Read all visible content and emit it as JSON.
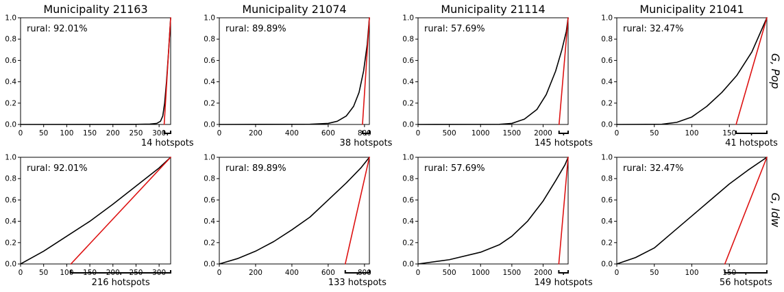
{
  "figure": {
    "row_labels": [
      "G, Pop",
      "G, Idw"
    ],
    "colors": {
      "curve": "#000000",
      "line": "#dd1111",
      "bracket": "#000000"
    }
  },
  "chart_data": [
    {
      "type": "line",
      "row": 0,
      "col": 0,
      "title": "Municipality 21163",
      "annotation": "rural: 92.01%",
      "xlim": [
        0,
        325
      ],
      "ylim": [
        0,
        1
      ],
      "xticks": [
        0,
        50,
        100,
        150,
        200,
        250,
        300
      ],
      "yticks": [
        0.0,
        0.2,
        0.4,
        0.6,
        0.8,
        1.0
      ],
      "series": [
        {
          "values": [
            [
              0,
              0
            ],
            [
              250,
              0.001
            ],
            [
              280,
              0.004
            ],
            [
              295,
              0.01
            ],
            [
              303,
              0.03
            ],
            [
              308,
              0.08
            ],
            [
              312,
              0.2
            ],
            [
              316,
              0.4
            ],
            [
              320,
              0.65
            ],
            [
              325,
              1.0
            ]
          ]
        },
        {
          "values": [
            [
              311,
              0
            ],
            [
              325,
              1.0
            ]
          ]
        }
      ],
      "bracket": [
        311,
        325
      ],
      "hotspots_label": "14 hotspots"
    },
    {
      "type": "line",
      "row": 0,
      "col": 1,
      "title": "Municipality 21074",
      "annotation": "rural: 89.89%",
      "xlim": [
        0,
        827
      ],
      "ylim": [
        0,
        1
      ],
      "xticks": [
        0,
        200,
        400,
        600,
        800
      ],
      "yticks": [
        0.0,
        0.2,
        0.4,
        0.6,
        0.8,
        1.0
      ],
      "series": [
        {
          "values": [
            [
              0,
              0
            ],
            [
              500,
              0.002
            ],
            [
              600,
              0.01
            ],
            [
              650,
              0.03
            ],
            [
              700,
              0.08
            ],
            [
              740,
              0.17
            ],
            [
              770,
              0.3
            ],
            [
              795,
              0.5
            ],
            [
              815,
              0.75
            ],
            [
              827,
              1.0
            ]
          ]
        },
        {
          "values": [
            [
              789,
              0
            ],
            [
              827,
              1.0
            ]
          ]
        }
      ],
      "bracket": [
        789,
        827
      ],
      "hotspots_label": "38 hotspots"
    },
    {
      "type": "line",
      "row": 0,
      "col": 2,
      "title": "Municipality 21114",
      "annotation": "rural: 57.69%",
      "xlim": [
        0,
        2400
      ],
      "ylim": [
        0,
        1
      ],
      "xticks": [
        0,
        500,
        1000,
        1500,
        2000
      ],
      "yticks": [
        0.0,
        0.2,
        0.4,
        0.6,
        0.8,
        1.0
      ],
      "series": [
        {
          "values": [
            [
              0,
              0
            ],
            [
              1300,
              0.001
            ],
            [
              1500,
              0.01
            ],
            [
              1700,
              0.05
            ],
            [
              1900,
              0.14
            ],
            [
              2050,
              0.28
            ],
            [
              2200,
              0.5
            ],
            [
              2300,
              0.7
            ],
            [
              2370,
              0.87
            ],
            [
              2400,
              1.0
            ]
          ]
        },
        {
          "values": [
            [
              2255,
              0
            ],
            [
              2400,
              1.0
            ]
          ]
        }
      ],
      "bracket": [
        2255,
        2400
      ],
      "hotspots_label": "145 hotspots"
    },
    {
      "type": "line",
      "row": 0,
      "col": 3,
      "title": "Municipality 21041",
      "annotation": "rural: 32.47%",
      "xlim": [
        0,
        200
      ],
      "ylim": [
        0,
        1
      ],
      "xticks": [
        0,
        50,
        100,
        150
      ],
      "yticks": [
        0.0,
        0.2,
        0.4,
        0.6,
        0.8,
        1.0
      ],
      "series": [
        {
          "values": [
            [
              0,
              0
            ],
            [
              60,
              0.002
            ],
            [
              80,
              0.02
            ],
            [
              100,
              0.07
            ],
            [
              120,
              0.17
            ],
            [
              140,
              0.3
            ],
            [
              160,
              0.46
            ],
            [
              180,
              0.68
            ],
            [
              200,
              1.0
            ]
          ]
        },
        {
          "values": [
            [
              159,
              0
            ],
            [
              200,
              1.0
            ]
          ]
        }
      ],
      "bracket": [
        159,
        200
      ],
      "hotspots_label": "41 hotspots"
    },
    {
      "type": "line",
      "row": 1,
      "col": 0,
      "title": "",
      "annotation": "rural: 92.01%",
      "xlim": [
        0,
        325
      ],
      "ylim": [
        0,
        1
      ],
      "xticks": [
        0,
        50,
        100,
        150,
        200,
        250,
        300
      ],
      "yticks": [
        0.0,
        0.2,
        0.4,
        0.6,
        0.8,
        1.0
      ],
      "series": [
        {
          "values": [
            [
              0,
              0
            ],
            [
              50,
              0.12
            ],
            [
              100,
              0.26
            ],
            [
              150,
              0.4
            ],
            [
              200,
              0.56
            ],
            [
              250,
              0.73
            ],
            [
              300,
              0.9
            ],
            [
              325,
              1.0
            ]
          ]
        },
        {
          "values": [
            [
              109,
              0
            ],
            [
              325,
              1.0
            ]
          ]
        }
      ],
      "bracket": [
        109,
        325
      ],
      "hotspots_label": "216 hotspots"
    },
    {
      "type": "line",
      "row": 1,
      "col": 1,
      "title": "",
      "annotation": "rural: 89.89%",
      "xlim": [
        0,
        827
      ],
      "ylim": [
        0,
        1
      ],
      "xticks": [
        0,
        200,
        400,
        600,
        800
      ],
      "yticks": [
        0.0,
        0.2,
        0.4,
        0.6,
        0.8,
        1.0
      ],
      "series": [
        {
          "values": [
            [
              0,
              0
            ],
            [
              100,
              0.05
            ],
            [
              200,
              0.12
            ],
            [
              300,
              0.21
            ],
            [
              400,
              0.32
            ],
            [
              500,
              0.44
            ],
            [
              600,
              0.6
            ],
            [
              700,
              0.76
            ],
            [
              780,
              0.9
            ],
            [
              827,
              1.0
            ]
          ]
        },
        {
          "values": [
            [
              694,
              0
            ],
            [
              827,
              1.0
            ]
          ]
        }
      ],
      "bracket": [
        694,
        827
      ],
      "hotspots_label": "133 hotspots"
    },
    {
      "type": "line",
      "row": 1,
      "col": 2,
      "title": "",
      "annotation": "rural: 57.69%",
      "xlim": [
        0,
        2400
      ],
      "ylim": [
        0,
        1
      ],
      "xticks": [
        0,
        500,
        1000,
        1500,
        2000
      ],
      "yticks": [
        0.0,
        0.2,
        0.4,
        0.6,
        0.8,
        1.0
      ],
      "series": [
        {
          "values": [
            [
              0,
              0
            ],
            [
              500,
              0.04
            ],
            [
              1000,
              0.11
            ],
            [
              1300,
              0.18
            ],
            [
              1500,
              0.26
            ],
            [
              1750,
              0.4
            ],
            [
              2000,
              0.59
            ],
            [
              2200,
              0.78
            ],
            [
              2350,
              0.93
            ],
            [
              2400,
              1.0
            ]
          ]
        },
        {
          "values": [
            [
              2251,
              0
            ],
            [
              2400,
              1.0
            ]
          ]
        }
      ],
      "bracket": [
        2251,
        2400
      ],
      "hotspots_label": "149 hotspots"
    },
    {
      "type": "line",
      "row": 1,
      "col": 3,
      "title": "",
      "annotation": "rural: 32.47%",
      "xlim": [
        0,
        200
      ],
      "ylim": [
        0,
        1
      ],
      "xticks": [
        0,
        50,
        100,
        150
      ],
      "yticks": [
        0.0,
        0.2,
        0.4,
        0.6,
        0.8,
        1.0
      ],
      "series": [
        {
          "values": [
            [
              0,
              0
            ],
            [
              25,
              0.06
            ],
            [
              50,
              0.15
            ],
            [
              75,
              0.3
            ],
            [
              100,
              0.45
            ],
            [
              125,
              0.6
            ],
            [
              150,
              0.75
            ],
            [
              175,
              0.88
            ],
            [
              200,
              1.0
            ]
          ]
        },
        {
          "values": [
            [
              144,
              0
            ],
            [
              200,
              1.0
            ]
          ]
        }
      ],
      "bracket": [
        144,
        200
      ],
      "hotspots_label": "56 hotspots"
    }
  ]
}
